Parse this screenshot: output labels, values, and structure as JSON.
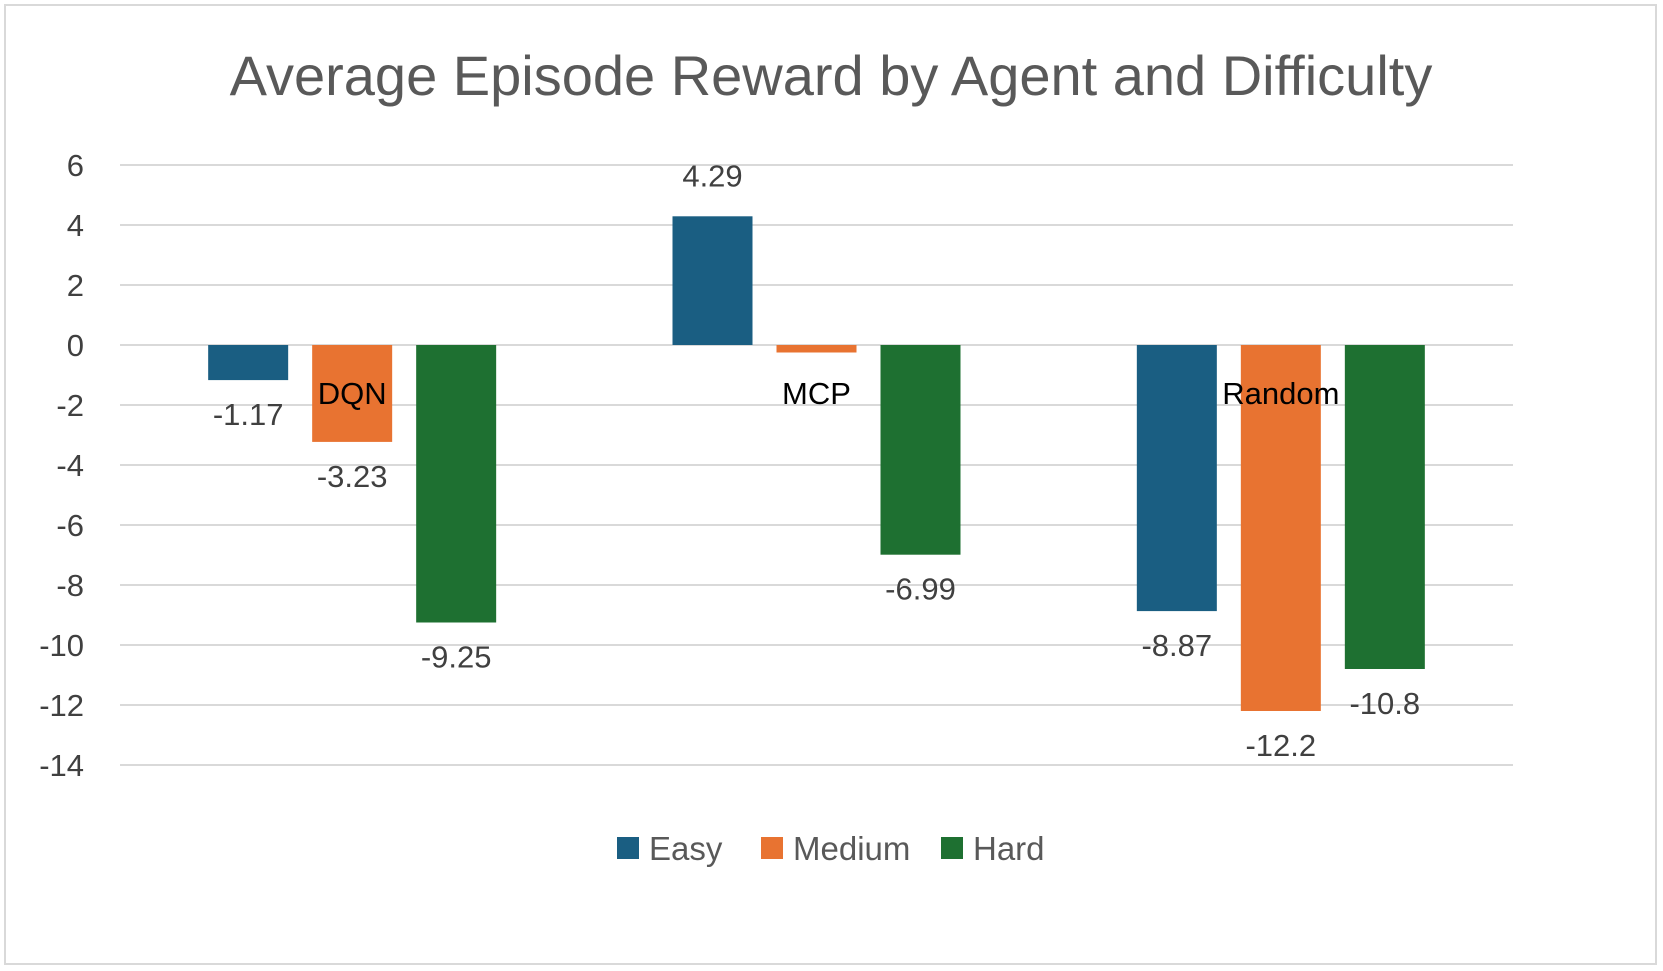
{
  "chart_data": {
    "type": "bar",
    "title": "Average Episode Reward by Agent and Difficulty",
    "categories": [
      "DQN",
      "MCP",
      "Random"
    ],
    "series": [
      {
        "name": "Easy",
        "color": "#1a5e82",
        "values": [
          -1.17,
          4.29,
          -8.87
        ],
        "labels": [
          "-1.17",
          "4.29",
          "-8.87"
        ]
      },
      {
        "name": "Medium",
        "color": "#e87331",
        "values": [
          -3.23,
          -0.25,
          -12.2
        ],
        "labels": [
          "-3.23",
          "",
          "-12.2"
        ]
      },
      {
        "name": "Hard",
        "color": "#1e7031",
        "values": [
          -9.25,
          -6.99,
          -10.8
        ],
        "labels": [
          "-9.25",
          "-6.99",
          "-10.8"
        ]
      }
    ],
    "yticks": [
      6,
      4,
      2,
      0,
      -2,
      -4,
      -6,
      -8,
      -10,
      -12,
      -14
    ],
    "ylim": [
      -14,
      6
    ],
    "grid": true,
    "legend_position": "bottom"
  }
}
